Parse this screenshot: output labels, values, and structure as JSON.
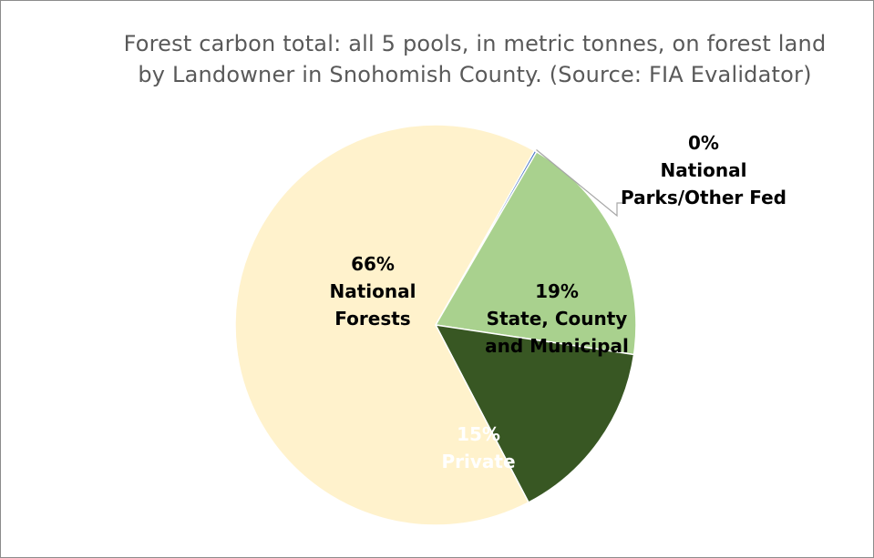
{
  "chart_data": {
    "type": "pie",
    "title_lines": [
      "Forest carbon total: all 5 pools, in metric tonnes, on forest land",
      "by Landowner in Snohomish County. (Source: FIA Evalidator)"
    ],
    "start_angle_deg": 60.5,
    "slices": [
      {
        "name": "National Parks/Other Fed",
        "value": 0.2,
        "percent_label": "0%",
        "label_lines": [
          "National",
          "Parks/Other Fed"
        ],
        "color": "#4472c4"
      },
      {
        "name": "State, County and Municipal",
        "value": 19,
        "percent_label": "19%",
        "label_lines": [
          "State, County",
          "and Municipal"
        ],
        "color": "#a9d18e"
      },
      {
        "name": "Private",
        "value": 15,
        "percent_label": "15%",
        "label_lines": [
          "Private"
        ],
        "color": "#385723"
      },
      {
        "name": "National Forests",
        "value": 66,
        "percent_label": "66%",
        "label_lines": [
          "National",
          "Forests"
        ],
        "color": "#fff2cc"
      }
    ],
    "label_colors": {
      "dark_slice": "#ffffff",
      "default": "#000000"
    }
  }
}
